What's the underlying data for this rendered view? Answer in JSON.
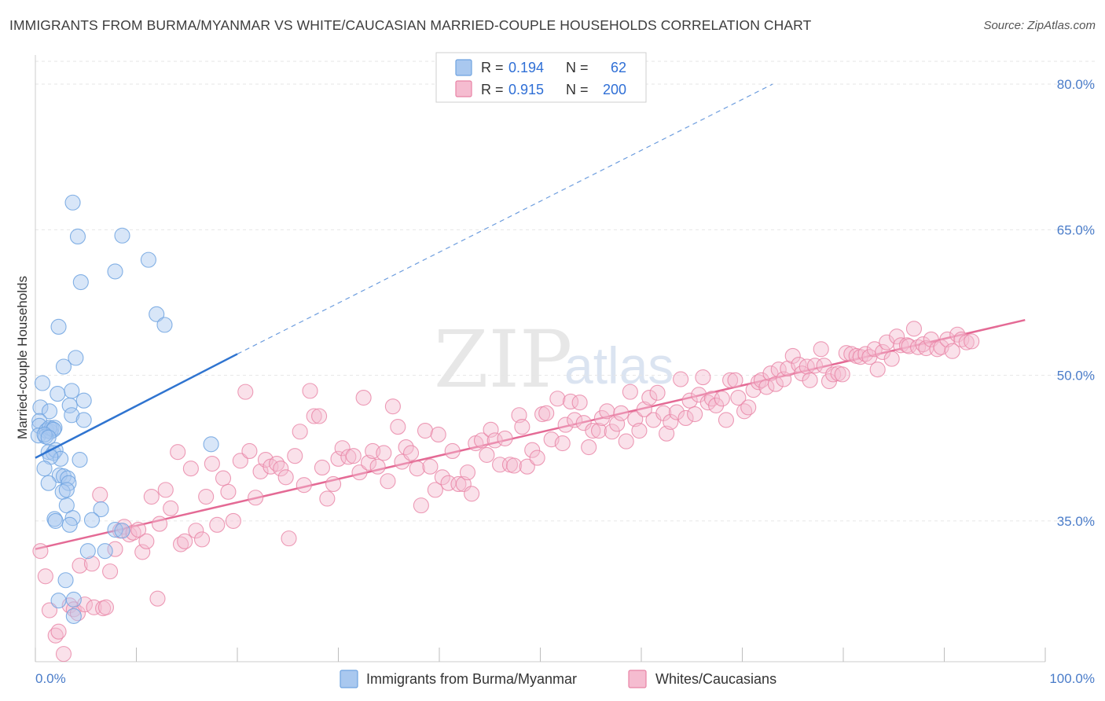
{
  "title": "IMMIGRANTS FROM BURMA/MYANMAR VS WHITE/CAUCASIAN MARRIED-COUPLE HOUSEHOLDS CORRELATION CHART",
  "source": "Source: ZipAtlas.com",
  "watermark": {
    "zip": "ZIP",
    "atlas": "atlas"
  },
  "colors": {
    "blue": "#6fa3e0",
    "blue_fill": "#a9c8ef",
    "blue_line": "#2f74d0",
    "pink": "#e883a5",
    "pink_fill": "#f5bcd0",
    "pink_line": "#e46a95"
  },
  "legend": {
    "rows": [
      {
        "r_label": "R =",
        "r_value": "0.194",
        "n_label": "N =",
        "n_value": "62"
      },
      {
        "r_label": "R =",
        "r_value": "0.915",
        "n_label": "N =",
        "n_value": "200"
      }
    ]
  },
  "bottom_legend": [
    "Immigrants from Burma/Myanmar",
    "Whites/Caucasians"
  ],
  "chart_data": {
    "type": "scatter",
    "title": "IMMIGRANTS FROM BURMA/MYANMAR VS WHITE/CAUCASIAN MARRIED-COUPLE HOUSEHOLDS CORRELATION CHART",
    "xlabel": "",
    "ylabel": "Married-couple Households",
    "xlim": [
      0,
      100
    ],
    "ylim": [
      20.5,
      83
    ],
    "x_tick_labels": [
      "0.0%",
      "100.0%"
    ],
    "y_ticks": [
      35,
      50,
      65,
      80
    ],
    "y_tick_labels": [
      "35.0%",
      "50.0%",
      "65.0%",
      "80.0%"
    ],
    "series": [
      {
        "name": "Immigrants from Burma/Myanmar",
        "R": 0.194,
        "N": 62,
        "trend": {
          "x0": 0,
          "y0": 41.5,
          "x1": 20,
          "y1": 52.2,
          "dashed_to_x": 73,
          "dashed_to_y": 80.0
        },
        "points": [
          [
            3.7,
            67.8
          ],
          [
            4.2,
            64.3
          ],
          [
            8.6,
            64.4
          ],
          [
            7.9,
            60.7
          ],
          [
            11.2,
            61.9
          ],
          [
            4.5,
            59.6
          ],
          [
            12.0,
            56.3
          ],
          [
            12.8,
            55.2
          ],
          [
            2.3,
            55.0
          ],
          [
            4.0,
            51.8
          ],
          [
            2.8,
            50.9
          ],
          [
            0.7,
            49.2
          ],
          [
            3.6,
            48.4
          ],
          [
            2.2,
            48.1
          ],
          [
            4.8,
            47.4
          ],
          [
            0.5,
            46.7
          ],
          [
            3.4,
            46.9
          ],
          [
            1.4,
            46.3
          ],
          [
            3.6,
            45.9
          ],
          [
            4.8,
            45.4
          ],
          [
            0.4,
            45.3
          ],
          [
            0.4,
            44.8
          ],
          [
            0.3,
            43.8
          ],
          [
            1.1,
            44.3
          ],
          [
            1.5,
            44.2
          ],
          [
            1.6,
            44.5
          ],
          [
            1.4,
            44.6
          ],
          [
            1.9,
            44.6
          ],
          [
            1.8,
            44.4
          ],
          [
            1.0,
            43.7
          ],
          [
            0.9,
            43.9
          ],
          [
            1.3,
            43.6
          ],
          [
            1.3,
            42.1
          ],
          [
            1.8,
            42.0
          ],
          [
            2.0,
            42.3
          ],
          [
            2.5,
            41.4
          ],
          [
            1.5,
            41.6
          ],
          [
            4.4,
            41.3
          ],
          [
            17.4,
            42.9
          ],
          [
            0.9,
            40.4
          ],
          [
            2.4,
            39.7
          ],
          [
            2.8,
            39.6
          ],
          [
            3.2,
            39.4
          ],
          [
            1.3,
            38.9
          ],
          [
            3.3,
            38.9
          ],
          [
            2.7,
            38.0
          ],
          [
            3.1,
            38.2
          ],
          [
            3.1,
            36.6
          ],
          [
            6.5,
            36.2
          ],
          [
            1.9,
            35.2
          ],
          [
            3.7,
            35.3
          ],
          [
            5.6,
            35.1
          ],
          [
            3.4,
            34.6
          ],
          [
            7.9,
            34.1
          ],
          [
            8.6,
            34.0
          ],
          [
            5.2,
            31.9
          ],
          [
            6.9,
            31.9
          ],
          [
            3.0,
            28.9
          ],
          [
            2.3,
            26.8
          ],
          [
            3.8,
            26.9
          ],
          [
            3.8,
            25.2
          ],
          [
            2.0,
            35.0
          ]
        ]
      },
      {
        "name": "Whites/Caucasians",
        "R": 0.915,
        "N": 200,
        "trend": {
          "x0": 0,
          "y0": 32.1,
          "x1": 98,
          "y1": 55.7
        },
        "points": [
          [
            0.5,
            31.9
          ],
          [
            1.0,
            29.3
          ],
          [
            1.4,
            25.8
          ],
          [
            2.0,
            23.2
          ],
          [
            2.3,
            23.6
          ],
          [
            2.8,
            21.3
          ],
          [
            3.4,
            26.3
          ],
          [
            3.8,
            25.9
          ],
          [
            4.2,
            25.5
          ],
          [
            4.4,
            30.4
          ],
          [
            4.9,
            26.4
          ],
          [
            5.6,
            30.6
          ],
          [
            5.8,
            26.1
          ],
          [
            6.4,
            37.7
          ],
          [
            6.7,
            26.0
          ],
          [
            7.0,
            26.1
          ],
          [
            7.4,
            29.8
          ],
          [
            7.9,
            32.1
          ],
          [
            8.4,
            34.0
          ],
          [
            8.8,
            34.4
          ],
          [
            9.3,
            33.6
          ],
          [
            9.7,
            33.8
          ],
          [
            10.2,
            34.1
          ],
          [
            10.6,
            31.8
          ],
          [
            11.0,
            32.9
          ],
          [
            11.5,
            37.5
          ],
          [
            12.1,
            27.0
          ],
          [
            12.3,
            34.7
          ],
          [
            12.9,
            38.2
          ],
          [
            13.4,
            36.3
          ],
          [
            14.1,
            42.1
          ],
          [
            14.4,
            32.6
          ],
          [
            14.8,
            32.9
          ],
          [
            15.4,
            40.4
          ],
          [
            15.9,
            34.0
          ],
          [
            16.5,
            33.1
          ],
          [
            16.9,
            37.5
          ],
          [
            17.5,
            40.9
          ],
          [
            18.0,
            34.6
          ],
          [
            18.6,
            39.4
          ],
          [
            19.1,
            38.0
          ],
          [
            19.6,
            35.0
          ],
          [
            20.3,
            41.2
          ],
          [
            20.8,
            48.3
          ],
          [
            21.2,
            42.2
          ],
          [
            21.8,
            37.4
          ],
          [
            22.3,
            40.1
          ],
          [
            22.8,
            41.3
          ],
          [
            23.3,
            40.6
          ],
          [
            23.9,
            40.9
          ],
          [
            24.3,
            40.4
          ],
          [
            24.8,
            39.5
          ],
          [
            25.1,
            33.2
          ],
          [
            25.7,
            41.7
          ],
          [
            26.2,
            44.2
          ],
          [
            26.6,
            38.7
          ],
          [
            27.2,
            48.4
          ],
          [
            27.6,
            45.8
          ],
          [
            28.1,
            45.8
          ],
          [
            28.4,
            40.5
          ],
          [
            28.9,
            37.3
          ],
          [
            29.5,
            38.8
          ],
          [
            30.0,
            41.4
          ],
          [
            30.4,
            42.5
          ],
          [
            31.0,
            41.6
          ],
          [
            31.5,
            41.7
          ],
          [
            32.1,
            40.0
          ],
          [
            32.5,
            47.7
          ],
          [
            33.0,
            41.0
          ],
          [
            33.4,
            42.2
          ],
          [
            33.9,
            40.6
          ],
          [
            34.5,
            42.0
          ],
          [
            34.9,
            39.1
          ],
          [
            35.4,
            46.8
          ],
          [
            35.9,
            44.7
          ],
          [
            36.3,
            41.1
          ],
          [
            36.7,
            42.6
          ],
          [
            37.2,
            42.0
          ],
          [
            37.8,
            40.4
          ],
          [
            38.2,
            36.6
          ],
          [
            38.6,
            44.3
          ],
          [
            39.1,
            40.6
          ],
          [
            39.6,
            38.2
          ],
          [
            39.9,
            43.9
          ],
          [
            40.3,
            39.5
          ],
          [
            40.9,
            38.9
          ],
          [
            41.3,
            42.2
          ],
          [
            41.9,
            38.8
          ],
          [
            42.4,
            38.8
          ],
          [
            42.8,
            40.0
          ],
          [
            43.2,
            37.8
          ],
          [
            43.6,
            43.0
          ],
          [
            44.2,
            43.3
          ],
          [
            44.7,
            41.8
          ],
          [
            45.1,
            44.4
          ],
          [
            45.5,
            43.3
          ],
          [
            46.0,
            40.8
          ],
          [
            46.5,
            43.5
          ],
          [
            47.0,
            40.8
          ],
          [
            47.4,
            40.7
          ],
          [
            47.9,
            45.9
          ],
          [
            48.2,
            44.7
          ],
          [
            48.7,
            40.6
          ],
          [
            49.2,
            42.3
          ],
          [
            49.7,
            41.5
          ],
          [
            50.2,
            46.0
          ],
          [
            50.6,
            46.1
          ],
          [
            51.1,
            43.4
          ],
          [
            51.7,
            47.6
          ],
          [
            52.2,
            43.0
          ],
          [
            52.5,
            44.9
          ],
          [
            53.0,
            47.3
          ],
          [
            53.4,
            45.4
          ],
          [
            53.9,
            47.2
          ],
          [
            54.3,
            45.1
          ],
          [
            54.8,
            42.6
          ],
          [
            55.2,
            44.3
          ],
          [
            55.8,
            44.3
          ],
          [
            56.1,
            45.6
          ],
          [
            56.6,
            46.3
          ],
          [
            57.1,
            44.2
          ],
          [
            57.6,
            45.0
          ],
          [
            58.0,
            46.1
          ],
          [
            58.5,
            43.2
          ],
          [
            58.9,
            48.3
          ],
          [
            59.4,
            45.5
          ],
          [
            59.8,
            44.3
          ],
          [
            60.3,
            46.5
          ],
          [
            60.8,
            47.7
          ],
          [
            61.2,
            45.4
          ],
          [
            61.6,
            48.2
          ],
          [
            62.2,
            46.1
          ],
          [
            62.5,
            44.0
          ],
          [
            62.9,
            45.2
          ],
          [
            63.5,
            46.2
          ],
          [
            63.9,
            49.6
          ],
          [
            64.4,
            45.6
          ],
          [
            64.8,
            47.4
          ],
          [
            65.3,
            46.0
          ],
          [
            65.7,
            48.0
          ],
          [
            66.1,
            49.8
          ],
          [
            66.6,
            47.2
          ],
          [
            67.0,
            47.6
          ],
          [
            67.4,
            46.9
          ],
          [
            68.0,
            47.6
          ],
          [
            68.4,
            45.4
          ],
          [
            68.8,
            49.5
          ],
          [
            69.3,
            49.5
          ],
          [
            69.6,
            47.7
          ],
          [
            70.2,
            46.3
          ],
          [
            70.6,
            46.7
          ],
          [
            71.1,
            48.5
          ],
          [
            71.6,
            49.3
          ],
          [
            71.9,
            49.5
          ],
          [
            72.4,
            48.8
          ],
          [
            72.8,
            50.2
          ],
          [
            73.3,
            49.1
          ],
          [
            73.6,
            50.6
          ],
          [
            74.1,
            49.6
          ],
          [
            74.5,
            50.7
          ],
          [
            75.0,
            52.0
          ],
          [
            75.6,
            51.1
          ],
          [
            75.9,
            50.2
          ],
          [
            76.4,
            50.9
          ],
          [
            76.7,
            49.5
          ],
          [
            77.2,
            51.0
          ],
          [
            77.8,
            52.7
          ],
          [
            78.1,
            51.0
          ],
          [
            78.6,
            49.4
          ],
          [
            79.0,
            50.1
          ],
          [
            79.5,
            50.2
          ],
          [
            79.9,
            50.1
          ],
          [
            80.3,
            52.3
          ],
          [
            80.8,
            52.2
          ],
          [
            81.3,
            52.0
          ],
          [
            81.7,
            51.9
          ],
          [
            82.2,
            52.2
          ],
          [
            82.6,
            51.9
          ],
          [
            83.1,
            52.7
          ],
          [
            83.4,
            50.6
          ],
          [
            83.9,
            52.4
          ],
          [
            84.3,
            53.4
          ],
          [
            84.8,
            51.7
          ],
          [
            85.3,
            54.0
          ],
          [
            85.7,
            53.1
          ],
          [
            86.3,
            53.1
          ],
          [
            86.5,
            53.0
          ],
          [
            87.0,
            54.8
          ],
          [
            87.4,
            52.9
          ],
          [
            87.9,
            53.2
          ],
          [
            88.2,
            52.8
          ],
          [
            88.7,
            53.7
          ],
          [
            89.3,
            52.7
          ],
          [
            89.7,
            52.9
          ],
          [
            90.3,
            53.7
          ],
          [
            90.8,
            52.5
          ],
          [
            91.3,
            54.2
          ],
          [
            91.7,
            53.7
          ],
          [
            92.2,
            53.4
          ],
          [
            92.7,
            53.5
          ]
        ]
      }
    ]
  }
}
